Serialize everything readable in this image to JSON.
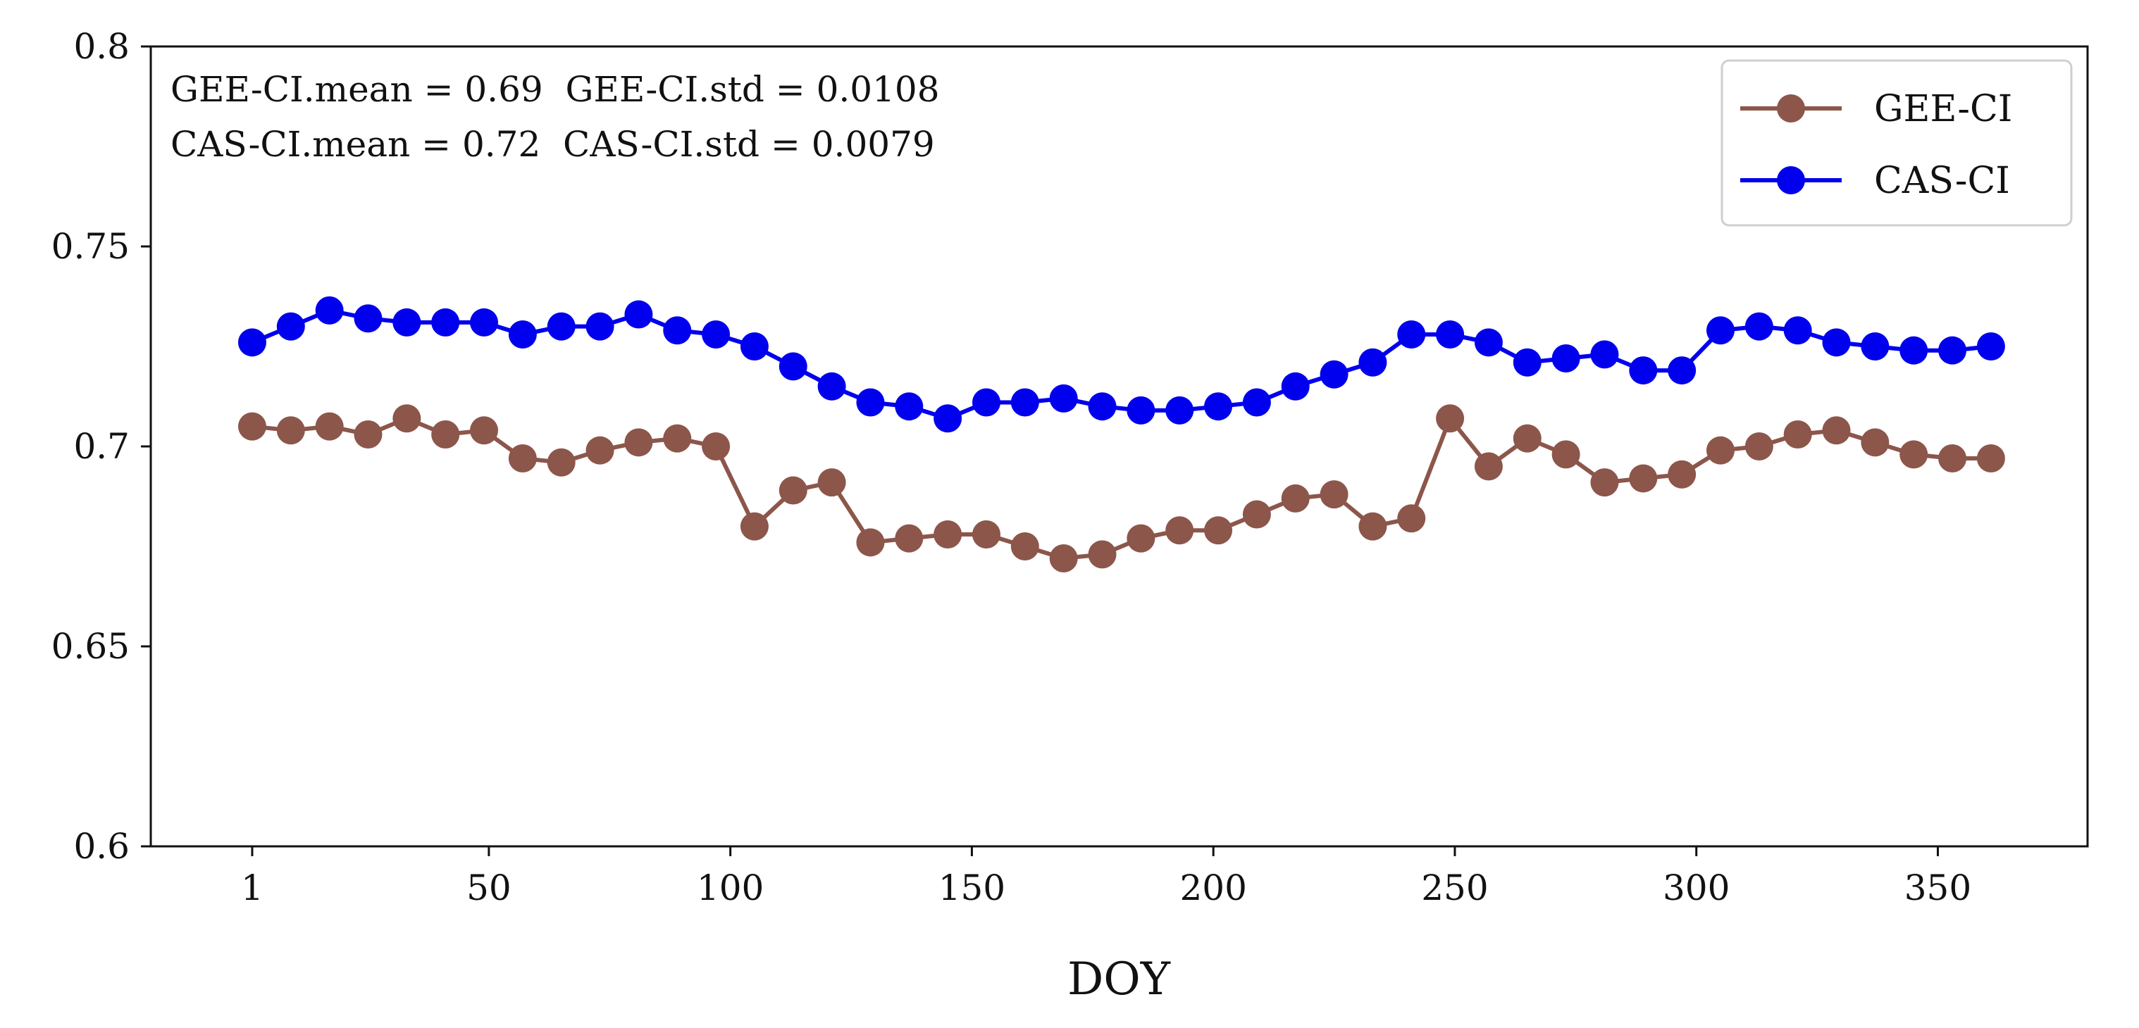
{
  "chart_data": {
    "type": "line",
    "title": "",
    "xlabel": "DOY",
    "ylabel": "",
    "xlim": [
      -20,
      381
    ],
    "ylim": [
      0.6,
      0.8
    ],
    "xticks": [
      1,
      50,
      100,
      150,
      200,
      250,
      300,
      350
    ],
    "xtick_labels": [
      "1",
      "50",
      "100",
      "150",
      "200",
      "250",
      "300",
      "350"
    ],
    "yticks": [
      0.6,
      0.65,
      0.7,
      0.75,
      0.8
    ],
    "ytick_labels": [
      "0.6",
      "0.65",
      "0.7",
      "0.75",
      "0.8"
    ],
    "grid": false,
    "legend_position": "top-right",
    "annotations": [
      "GEE-CI.mean = 0.69  GEE-CI.std = 0.0108",
      "CAS-CI.mean = 0.72  CAS-CI.std = 0.0079"
    ],
    "x": [
      1,
      9,
      17,
      25,
      33,
      41,
      49,
      57,
      65,
      73,
      81,
      89,
      97,
      105,
      113,
      121,
      129,
      137,
      145,
      153,
      161,
      169,
      177,
      185,
      193,
      201,
      209,
      217,
      225,
      233,
      241,
      249,
      257,
      265,
      273,
      281,
      289,
      297,
      305,
      313,
      321,
      329,
      337,
      345,
      353,
      361
    ],
    "series": [
      {
        "name": "GEE-CI",
        "color": "#8c564b",
        "values": [
          0.705,
          0.704,
          0.705,
          0.703,
          0.707,
          0.703,
          0.704,
          0.697,
          0.696,
          0.699,
          0.701,
          0.702,
          0.7,
          0.68,
          0.689,
          0.691,
          0.676,
          0.677,
          0.678,
          0.678,
          0.675,
          0.672,
          0.673,
          0.677,
          0.679,
          0.679,
          0.683,
          0.687,
          0.688,
          0.68,
          0.682,
          0.707,
          0.695,
          0.702,
          0.698,
          0.691,
          0.692,
          0.693,
          0.699,
          0.7,
          0.703,
          0.704,
          0.701,
          0.698,
          0.697,
          0.697
        ]
      },
      {
        "name": "CAS-CI",
        "color": "#0000ee",
        "values": [
          0.726,
          0.73,
          0.734,
          0.732,
          0.731,
          0.731,
          0.731,
          0.728,
          0.73,
          0.73,
          0.733,
          0.729,
          0.728,
          0.725,
          0.72,
          0.715,
          0.711,
          0.71,
          0.707,
          0.711,
          0.711,
          0.712,
          0.71,
          0.709,
          0.709,
          0.71,
          0.711,
          0.715,
          0.718,
          0.721,
          0.728,
          0.728,
          0.726,
          0.721,
          0.722,
          0.723,
          0.719,
          0.719,
          0.729,
          0.73,
          0.729,
          0.726,
          0.725,
          0.724,
          0.724,
          0.725
        ]
      }
    ]
  }
}
